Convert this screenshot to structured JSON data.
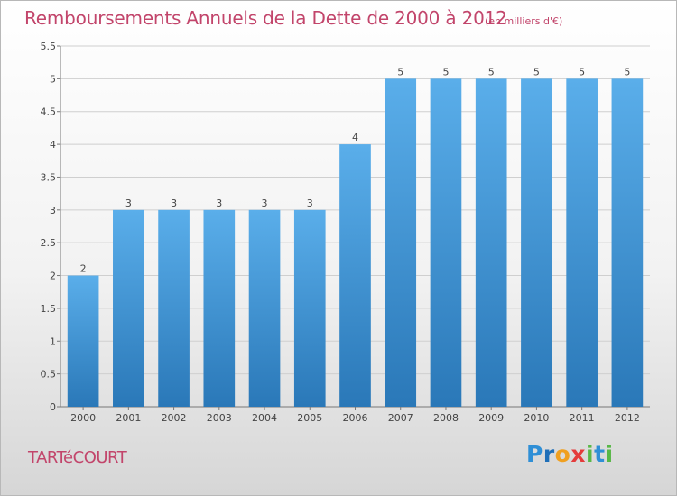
{
  "header": {
    "title": "Remboursements Annuels de la Dette de 2000 à 2012",
    "subtitle": "(en milliers d'€)"
  },
  "footer": {
    "commune": "TARTéCOURT",
    "brand_letters": [
      {
        "char": "P",
        "color": "#2f8fd6"
      },
      {
        "char": "r",
        "color": "#1f6fb8"
      },
      {
        "char": "o",
        "color": "#f0a020"
      },
      {
        "char": "x",
        "color": "#e43b3b"
      },
      {
        "char": "i",
        "color": "#58b847"
      },
      {
        "char": "t",
        "color": "#2f8fd6"
      },
      {
        "char": "i",
        "color": "#58b847"
      }
    ]
  },
  "chart_data": {
    "type": "bar",
    "title": "Remboursements Annuels de la Dette de 2000 à 2012",
    "subtitle": "(en milliers d'€)",
    "categories": [
      "2000",
      "2001",
      "2002",
      "2003",
      "2004",
      "2005",
      "2006",
      "2007",
      "2008",
      "2009",
      "2010",
      "2011",
      "2012"
    ],
    "values": [
      2,
      3,
      3,
      3,
      3,
      3,
      4,
      5,
      5,
      5,
      5,
      5,
      5
    ],
    "data_labels": [
      "2",
      "3",
      "3",
      "3",
      "3",
      "3",
      "4",
      "5",
      "5",
      "5",
      "5",
      "5",
      "5"
    ],
    "ylim": [
      0,
      5.5
    ],
    "yticks": [
      {
        "value": 0,
        "label": "0"
      },
      {
        "value": 0.5,
        "label": "0.5"
      },
      {
        "value": 1,
        "label": "1"
      },
      {
        "value": 1.5,
        "label": "1.5"
      },
      {
        "value": 2,
        "label": "2"
      },
      {
        "value": 2.5,
        "label": "2.5"
      },
      {
        "value": 3,
        "label": "3"
      },
      {
        "value": 3.5,
        "label": "3.5"
      },
      {
        "value": 4,
        "label": "4"
      },
      {
        "value": 4.5,
        "label": "4.5"
      },
      {
        "value": 5,
        "label": "5"
      },
      {
        "value": 5.5,
        "label": "5.5"
      }
    ],
    "grid": true,
    "colors": {
      "bar_light": "#5aaeea",
      "bar_dark": "#2a78b8",
      "grid": "#cfcfcf",
      "axis": "#777777"
    }
  }
}
